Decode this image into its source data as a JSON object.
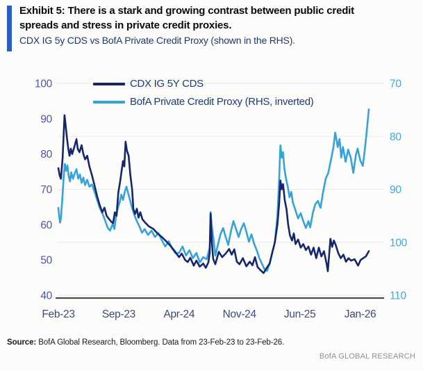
{
  "header": {
    "title": "Exhibit 5: There is a stark and growing contrast between public credit spreads and stress in private credit proxies.",
    "subtitle": "CDX IG 5y CDS vs BofA Private Credit Proxy (shown in the RHS)."
  },
  "footer": {
    "source_label": "Source:",
    "source_text": " BofA Global Research, Bloomberg. Data from 23-Feb-23 to 23-Feb-26.",
    "brand": "BofA GLOBAL RESEARCH"
  },
  "colors": {
    "accent_bar": "#2a5ec6",
    "navy_line": "#16256d",
    "light_blue_line": "#34a3dc",
    "left_axis_labels": "#4d57a6",
    "right_axis_labels": "#3fa9e1",
    "x_axis_labels": "#3e4a7c",
    "axis_line": "#4a4a4a",
    "gridline": "#e9e9e5",
    "legend_text": "#1d3c7a",
    "brand_gray": "#8f8f8f"
  },
  "chart_data": {
    "type": "line",
    "title": "CDX IG 5y CDS vs BofA Private Credit Proxy",
    "x_unit": "months since 23-Feb-2023 (range 0 to 36, i.e. 23-Feb-23 to 23-Feb-26)",
    "x_tick_labels": [
      "Feb-23",
      "Sep-23",
      "Apr-24",
      "Nov-24",
      "Jun-25",
      "Jan-26"
    ],
    "x_tick_positions_months": [
      0,
      7,
      14,
      21,
      28,
      35
    ],
    "left_axis": {
      "ticks": [
        100,
        90,
        80,
        70,
        60,
        50,
        40
      ],
      "range": [
        40,
        100
      ],
      "inverted": false
    },
    "right_axis": {
      "ticks": [
        70,
        80,
        90,
        100,
        110
      ],
      "range": [
        70,
        110
      ],
      "inverted": true
    },
    "grid": "faint horizontal lines at right-axis tick levels",
    "legend_position": "top-left inside plot, stacked",
    "series": [
      {
        "name": "CDX IG 5Y CDS",
        "axis": "left",
        "color": "#16256d",
        "points": [
          [
            0,
            76
          ],
          [
            0.15,
            74
          ],
          [
            0.3,
            73
          ],
          [
            0.5,
            79
          ],
          [
            0.65,
            87.5
          ],
          [
            0.72,
            91
          ],
          [
            0.85,
            88
          ],
          [
            1,
            84.5
          ],
          [
            1.15,
            81.5
          ],
          [
            1.3,
            79.5
          ],
          [
            1.45,
            81.5
          ],
          [
            1.6,
            80
          ],
          [
            1.85,
            82
          ],
          [
            2.1,
            84.2
          ],
          [
            2.25,
            81.5
          ],
          [
            2.45,
            80.5
          ],
          [
            2.7,
            82.5
          ],
          [
            2.9,
            80
          ],
          [
            3.1,
            78.5
          ],
          [
            3.35,
            79.5
          ],
          [
            3.6,
            76.5
          ],
          [
            3.9,
            74
          ],
          [
            4.2,
            71
          ],
          [
            4.5,
            68
          ],
          [
            4.8,
            65.5
          ],
          [
            5.1,
            63.5
          ],
          [
            5.35,
            64.8
          ],
          [
            5.6,
            62.5
          ],
          [
            5.9,
            61.5
          ],
          [
            6.15,
            60.8
          ],
          [
            6.35,
            60.4
          ],
          [
            6.55,
            63.5
          ],
          [
            6.75,
            62.5
          ],
          [
            6.95,
            69
          ],
          [
            7.15,
            72
          ],
          [
            7.35,
            75.5
          ],
          [
            7.5,
            78
          ],
          [
            7.65,
            76.5
          ],
          [
            7.8,
            83.5
          ],
          [
            7.95,
            81
          ],
          [
            8.15,
            79.5
          ],
          [
            8.35,
            74
          ],
          [
            8.55,
            70
          ],
          [
            8.7,
            64.5
          ],
          [
            8.9,
            63
          ],
          [
            9.1,
            64.5
          ],
          [
            9.3,
            62
          ],
          [
            9.5,
            63.5
          ],
          [
            9.75,
            61.5
          ],
          [
            10.1,
            60.5
          ],
          [
            10.5,
            59.5
          ],
          [
            11,
            58.8
          ],
          [
            11.5,
            57.5
          ],
          [
            12,
            56.5
          ],
          [
            12.5,
            55.3
          ],
          [
            13,
            54
          ],
          [
            13.5,
            52.5
          ],
          [
            14,
            50.8
          ],
          [
            14.3,
            51.8
          ],
          [
            14.7,
            50
          ],
          [
            15,
            49.4
          ],
          [
            15.3,
            50.6
          ],
          [
            15.7,
            48.4
          ],
          [
            16,
            49.8
          ],
          [
            16.4,
            48.1
          ],
          [
            16.8,
            49
          ],
          [
            17.1,
            47.8
          ],
          [
            17.4,
            49.3
          ],
          [
            17.55,
            52
          ],
          [
            17.65,
            63.1
          ],
          [
            17.8,
            55
          ],
          [
            17.95,
            50.3
          ],
          [
            18.2,
            48.8
          ],
          [
            18.6,
            52.3
          ],
          [
            19,
            50.8
          ],
          [
            19.4,
            51.8
          ],
          [
            19.8,
            53.1
          ],
          [
            20.1,
            51.5
          ],
          [
            20.4,
            53
          ],
          [
            20.7,
            49.5
          ],
          [
            21,
            48.8
          ],
          [
            21.4,
            50.5
          ],
          [
            21.8,
            48.2
          ],
          [
            22.2,
            49.5
          ],
          [
            22.5,
            48.5
          ],
          [
            22.8,
            50.8
          ],
          [
            23.1,
            48
          ],
          [
            23.4,
            47.2
          ],
          [
            23.8,
            46.3
          ],
          [
            24.1,
            47.5
          ],
          [
            24.5,
            49
          ],
          [
            24.8,
            52
          ],
          [
            25.1,
            55
          ],
          [
            25.4,
            60
          ],
          [
            25.6,
            66
          ],
          [
            25.75,
            72.5
          ],
          [
            25.9,
            70
          ],
          [
            26.05,
            71.5
          ],
          [
            26.25,
            67
          ],
          [
            26.45,
            64.5
          ],
          [
            26.65,
            60
          ],
          [
            26.85,
            57
          ],
          [
            27.1,
            55.5
          ],
          [
            27.3,
            57.5
          ],
          [
            27.5,
            54.5
          ],
          [
            27.8,
            55.8
          ],
          [
            28.1,
            53.5
          ],
          [
            28.4,
            54.5
          ],
          [
            28.7,
            52.8
          ],
          [
            29,
            53.8
          ],
          [
            29.3,
            51.5
          ],
          [
            29.6,
            53.5
          ],
          [
            29.9,
            50.5
          ],
          [
            30.2,
            53.5
          ],
          [
            30.5,
            51
          ],
          [
            30.8,
            52.5
          ],
          [
            31.1,
            49
          ],
          [
            31.25,
            46.8
          ],
          [
            31.55,
            56
          ],
          [
            31.75,
            53.7
          ],
          [
            31.95,
            55.5
          ],
          [
            32.15,
            54.3
          ],
          [
            32.45,
            52
          ],
          [
            32.75,
            50.5
          ],
          [
            33.05,
            51.5
          ],
          [
            33.35,
            49.5
          ],
          [
            33.65,
            50.5
          ],
          [
            33.95,
            49.8
          ],
          [
            34.35,
            50.2
          ],
          [
            34.75,
            48.4
          ],
          [
            35.05,
            50
          ],
          [
            35.35,
            50.5
          ],
          [
            35.65,
            51
          ],
          [
            36,
            52.5
          ]
        ]
      },
      {
        "name": "BofA Private Credit Proxy (RHS, inverted)",
        "axis": "right",
        "color": "#34a3dc",
        "points": [
          [
            0,
            93.5
          ],
          [
            0.1,
            95
          ],
          [
            0.2,
            96.3
          ],
          [
            0.3,
            95.5
          ],
          [
            0.45,
            92
          ],
          [
            0.6,
            88
          ],
          [
            0.75,
            85.2
          ],
          [
            0.9,
            86.5
          ],
          [
            1.05,
            85.5
          ],
          [
            1.2,
            87.5
          ],
          [
            1.35,
            88.5
          ],
          [
            1.5,
            86.8
          ],
          [
            1.7,
            88
          ],
          [
            1.9,
            87
          ],
          [
            2.1,
            86.2
          ],
          [
            2.3,
            88
          ],
          [
            2.5,
            87.2
          ],
          [
            2.7,
            88.8
          ],
          [
            2.9,
            87.8
          ],
          [
            3.1,
            89.2
          ],
          [
            3.35,
            88.2
          ],
          [
            3.6,
            89.5
          ],
          [
            3.9,
            89.1
          ],
          [
            4.2,
            90.5
          ],
          [
            4.5,
            92
          ],
          [
            4.8,
            93.5
          ],
          [
            5.1,
            94.5
          ],
          [
            5.4,
            95.8
          ],
          [
            5.7,
            97.2
          ],
          [
            6,
            97.8
          ],
          [
            6.3,
            96.5
          ],
          [
            6.5,
            97.5
          ],
          [
            6.7,
            95
          ],
          [
            6.9,
            93.5
          ],
          [
            7.1,
            92.5
          ],
          [
            7.3,
            91
          ],
          [
            7.5,
            92
          ],
          [
            7.7,
            90.5
          ],
          [
            7.9,
            89.5
          ],
          [
            8.1,
            90.8
          ],
          [
            8.3,
            92
          ],
          [
            8.5,
            93.2
          ],
          [
            8.8,
            94.8
          ],
          [
            9.1,
            96
          ],
          [
            9.4,
            97
          ],
          [
            9.7,
            98.2
          ],
          [
            10,
            97.5
          ],
          [
            10.4,
            98.6
          ],
          [
            10.8,
            97.8
          ],
          [
            11.2,
            99
          ],
          [
            11.6,
            98.3
          ],
          [
            12,
            99.6
          ],
          [
            12.4,
            100.8
          ],
          [
            12.8,
            99.8
          ],
          [
            13.2,
            101.2
          ],
          [
            13.6,
            102.1
          ],
          [
            14,
            102
          ],
          [
            14.4,
            100.8
          ],
          [
            14.8,
            102.5
          ],
          [
            15.2,
            101.5
          ],
          [
            15.6,
            103
          ],
          [
            16,
            102
          ],
          [
            16.4,
            103.8
          ],
          [
            16.8,
            102.8
          ],
          [
            17.2,
            103.2
          ],
          [
            17.55,
            101
          ],
          [
            17.65,
            94.3
          ],
          [
            17.8,
            97
          ],
          [
            18,
            99.5
          ],
          [
            18.2,
            102.5
          ],
          [
            18.5,
            100.5
          ],
          [
            18.8,
            98.5
          ],
          [
            19.1,
            97.3
          ],
          [
            19.4,
            99
          ],
          [
            19.7,
            100.5
          ],
          [
            20,
            98
          ],
          [
            20.3,
            96
          ],
          [
            20.6,
            97.5
          ],
          [
            20.9,
            99
          ],
          [
            21.2,
            97.5
          ],
          [
            21.5,
            96.4
          ],
          [
            21.8,
            98
          ],
          [
            22.1,
            99.9
          ],
          [
            22.4,
            98.5
          ],
          [
            22.7,
            100.3
          ],
          [
            23,
            101.5
          ],
          [
            23.3,
            103
          ],
          [
            23.6,
            104
          ],
          [
            23.9,
            105.1
          ],
          [
            24.2,
            105.4
          ],
          [
            24.5,
            104
          ],
          [
            24.8,
            102
          ],
          [
            25.1,
            100
          ],
          [
            25.4,
            95
          ],
          [
            25.6,
            88
          ],
          [
            25.75,
            81.7
          ],
          [
            25.9,
            84
          ],
          [
            26.05,
            83
          ],
          [
            26.2,
            86
          ],
          [
            26.4,
            88
          ],
          [
            26.6,
            89.5
          ],
          [
            26.8,
            91.5
          ],
          [
            27,
            90.5
          ],
          [
            27.2,
            92.5
          ],
          [
            27.5,
            94
          ],
          [
            27.8,
            95.5
          ],
          [
            28.1,
            94.5
          ],
          [
            28.4,
            96
          ],
          [
            28.7,
            97.3
          ],
          [
            29,
            96
          ],
          [
            29.2,
            97.2
          ],
          [
            29.5,
            94.5
          ],
          [
            29.8,
            92.8
          ],
          [
            30.1,
            92.2
          ],
          [
            30.4,
            93.5
          ],
          [
            30.7,
            90.5
          ],
          [
            31,
            88
          ],
          [
            31.3,
            86.9
          ],
          [
            31.6,
            84.5
          ],
          [
            31.9,
            82
          ],
          [
            32.1,
            79.3
          ],
          [
            32.4,
            82
          ],
          [
            32.6,
            80.5
          ],
          [
            32.8,
            84
          ],
          [
            33,
            82
          ],
          [
            33.3,
            84.8
          ],
          [
            33.6,
            82.5
          ],
          [
            33.9,
            84
          ],
          [
            34.2,
            86.9
          ],
          [
            34.5,
            83.5
          ],
          [
            34.7,
            82.3
          ],
          [
            35,
            84.5
          ],
          [
            35.3,
            85.6
          ],
          [
            35.5,
            83
          ],
          [
            35.7,
            80
          ],
          [
            35.85,
            77.5
          ],
          [
            36,
            74.9
          ]
        ]
      }
    ]
  }
}
